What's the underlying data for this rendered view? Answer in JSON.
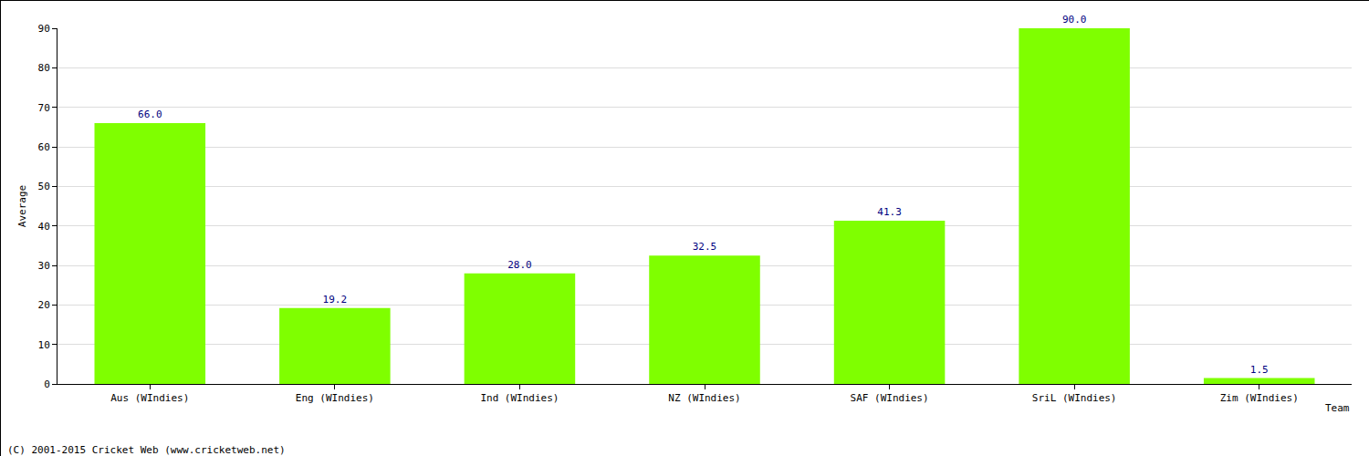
{
  "chart_data": {
    "type": "bar",
    "categories": [
      "Aus (WIndies)",
      "Eng (WIndies)",
      "Ind (WIndies)",
      "NZ (WIndies)",
      "SAF (WIndies)",
      "SriL (WIndies)",
      "Zim (WIndies)"
    ],
    "values": [
      66.0,
      19.2,
      28.0,
      32.5,
      41.3,
      90.0,
      1.5
    ],
    "value_labels": [
      "66.0",
      "19.2",
      "28.0",
      "32.5",
      "41.3",
      "90.0",
      "1.5"
    ],
    "color": "#7fff00",
    "x_label": "Team",
    "y_label": "Average",
    "ylim": [
      0,
      90
    ],
    "yticks": [
      0,
      10,
      20,
      30,
      40,
      50,
      60,
      70,
      80,
      90
    ],
    "grid": true,
    "data_labels": true,
    "annotations": [
      "(C) 2001-2015 Cricket Web (www.cricketweb.net)"
    ]
  }
}
